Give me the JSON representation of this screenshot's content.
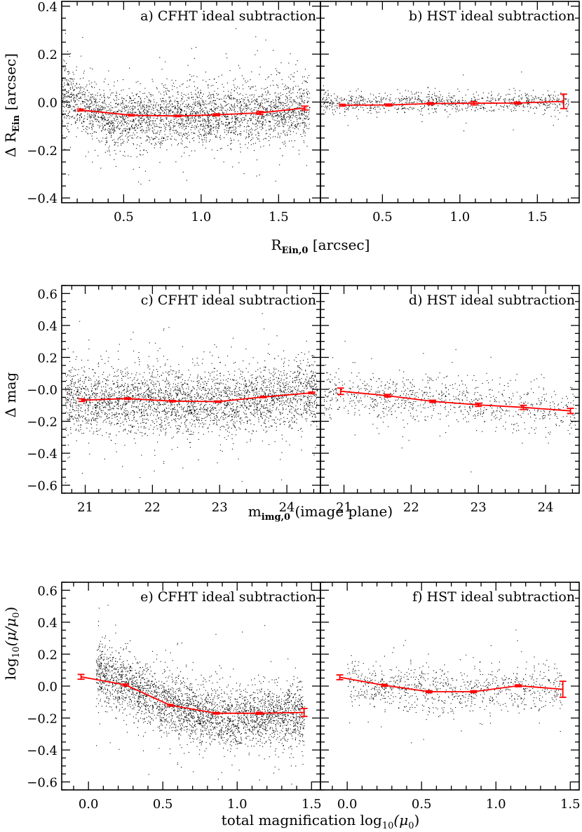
{
  "figure": {
    "rows": [
      {
        "xlabel": "R",
        "xlabel_sub": "Ein,0",
        "xlabel_tail": "[arcsec]",
        "ylabel": "Δ R",
        "ylabel_sub": "Ein",
        "ylabel_tail": "[arcsec]"
      },
      {
        "xlabel": "m",
        "xlabel_sub": "img,0",
        "xlabel_tail": "(image plane)",
        "ylabel": "Δ mag",
        "ylabel_sub": "",
        "ylabel_tail": ""
      },
      {
        "xlabel": "total magnification log",
        "xlabel_sub": "10",
        "xlabel_tail": "(μ",
        "xlabel_sub2": "0",
        "xlabel_tail2": ")",
        "ylabel": "log",
        "ylabel_sub": "10",
        "ylabel_tail": "(μ/μ",
        "ylabel_sub2": "0",
        "ylabel_tail2": ")"
      }
    ]
  },
  "chart_data": [
    {
      "type": "scatter",
      "panel": "a",
      "title": "a) CFHT ideal subtraction",
      "xlim": [
        0.1,
        1.77
      ],
      "ylim": [
        -0.42,
        0.42
      ],
      "xticks": [
        0.5,
        1.0,
        1.5
      ],
      "xticklabels": [
        "0.5",
        "1.0",
        "1.5"
      ],
      "yticks": [
        -0.4,
        -0.2,
        0.0,
        0.2,
        0.4
      ],
      "yticklabels": [
        "−0.4",
        "−0.2",
        "0.0",
        "0.2",
        "0.4"
      ],
      "scatter": {
        "density": "high",
        "x_range": [
          0.1,
          1.7
        ],
        "trend": [
          [
            0.1,
            0.03
          ],
          [
            0.4,
            -0.07
          ],
          [
            0.8,
            -0.06
          ],
          [
            1.2,
            -0.05
          ],
          [
            1.7,
            -0.03
          ]
        ],
        "spread": 0.06
      },
      "mean_line": {
        "color": "#ff0000",
        "x": [
          0.22,
          0.55,
          0.85,
          1.1,
          1.38,
          1.67
        ],
        "y": [
          -0.033,
          -0.055,
          -0.058,
          -0.053,
          -0.045,
          -0.025
        ],
        "err": [
          0.004,
          0.003,
          0.003,
          0.004,
          0.006,
          0.008
        ]
      }
    },
    {
      "type": "scatter",
      "panel": "b",
      "title": "b) HST  ideal subtraction",
      "xlim": [
        0.1,
        1.77
      ],
      "ylim": [
        -0.42,
        0.42
      ],
      "xticks": [
        0.5,
        1.0,
        1.5
      ],
      "xticklabels": [
        "0.5",
        "1.0",
        "1.5"
      ],
      "yticks": [
        -0.4,
        -0.2,
        0.0,
        0.2,
        0.4
      ],
      "yticklabels": [
        "−0.4",
        "−0.2",
        "0.0",
        "0.2",
        "0.4"
      ],
      "scatter": {
        "density": "low",
        "x_range": [
          0.1,
          1.7
        ],
        "trend": [
          [
            0.1,
            0.0
          ],
          [
            1.7,
            0.0
          ]
        ],
        "spread": 0.02
      },
      "mean_line": {
        "color": "#ff0000",
        "x": [
          0.24,
          0.54,
          0.81,
          1.09,
          1.37,
          1.67
        ],
        "y": [
          -0.013,
          -0.012,
          -0.006,
          -0.005,
          -0.004,
          0.003
        ],
        "err": [
          0.004,
          0.004,
          0.004,
          0.007,
          0.004,
          0.03
        ]
      }
    },
    {
      "type": "scatter",
      "panel": "c",
      "title": "c) CFHT ideal subtraction",
      "xlim": [
        20.65,
        24.5
      ],
      "ylim": [
        -0.65,
        0.65
      ],
      "xticks": [
        21,
        22,
        23,
        24
      ],
      "xticklabels": [
        "21",
        "22",
        "23",
        "24"
      ],
      "yticks": [
        -0.6,
        -0.4,
        -0.2,
        0.0,
        0.2,
        0.4,
        0.6
      ],
      "yticklabels": [
        "−0.6",
        "−0.4",
        "−0.2",
        "−0.0",
        "0.2",
        "0.4",
        "0.6"
      ],
      "scatter": {
        "density": "high",
        "x_range": [
          20.7,
          24.45
        ],
        "trend": [
          [
            20.7,
            -0.06
          ],
          [
            23,
            -0.08
          ],
          [
            24.45,
            -0.02
          ]
        ],
        "spread": 0.1
      },
      "mean_line": {
        "color": "#ff0000",
        "x": [
          20.95,
          21.63,
          22.3,
          22.98,
          23.65,
          24.37
        ],
        "y": [
          -0.068,
          -0.058,
          -0.074,
          -0.077,
          -0.048,
          -0.022
        ],
        "err": [
          0.008,
          0.005,
          0.004,
          0.004,
          0.004,
          0.005
        ]
      }
    },
    {
      "type": "scatter",
      "panel": "d",
      "title": "d) HST  ideal subtraction",
      "xlim": [
        20.65,
        24.5
      ],
      "ylim": [
        -0.65,
        0.65
      ],
      "xticks": [
        21,
        22,
        23,
        24
      ],
      "xticklabels": [
        "21",
        "22",
        "23",
        "24"
      ],
      "yticks": [
        -0.6,
        -0.4,
        -0.2,
        0.0,
        0.2,
        0.4,
        0.6
      ],
      "yticklabels": [
        "−0.6",
        "−0.4",
        "−0.2",
        "−0.0",
        "0.2",
        "0.4",
        "0.6"
      ],
      "scatter": {
        "density": "low",
        "x_range": [
          20.7,
          24.45
        ],
        "trend": [
          [
            20.7,
            -0.02
          ],
          [
            24.45,
            -0.13
          ]
        ],
        "spread": 0.07
      },
      "mean_line": {
        "color": "#ff0000",
        "x": [
          20.95,
          21.65,
          22.32,
          23.0,
          23.67,
          24.37
        ],
        "y": [
          -0.012,
          -0.04,
          -0.075,
          -0.097,
          -0.113,
          -0.135
        ],
        "err": [
          0.02,
          0.008,
          0.007,
          0.01,
          0.013,
          0.016
        ]
      }
    },
    {
      "type": "scatter",
      "panel": "e",
      "title": "e) CFHT ideal subtraction",
      "xlim": [
        -0.18,
        1.56
      ],
      "ylim": [
        -0.65,
        0.65
      ],
      "xticks": [
        0.0,
        0.5,
        1.0,
        1.5
      ],
      "xticklabels": [
        "0.0",
        "0.5",
        "1.0",
        "1.5"
      ],
      "yticks": [
        -0.6,
        -0.4,
        -0.2,
        0.0,
        0.2,
        0.4,
        0.6
      ],
      "yticklabels": [
        "−0.6",
        "−0.4",
        "−0.2",
        "0.0",
        "0.2",
        "0.4",
        "0.6"
      ],
      "scatter": {
        "density": "high",
        "x_range": [
          0.05,
          1.45
        ],
        "trend": [
          [
            0.05,
            0.1
          ],
          [
            0.3,
            0.0
          ],
          [
            0.6,
            -0.14
          ],
          [
            0.9,
            -0.2
          ],
          [
            1.45,
            -0.18
          ]
        ],
        "spread": 0.09
      },
      "mean_line": {
        "color": "#ff0000",
        "x": [
          -0.05,
          0.25,
          0.55,
          0.86,
          1.15,
          1.45
        ],
        "y": [
          0.058,
          0.007,
          -0.12,
          -0.17,
          -0.17,
          -0.165
        ],
        "err": [
          0.015,
          0.006,
          0.005,
          0.005,
          0.006,
          0.025
        ]
      }
    },
    {
      "type": "scatter",
      "panel": "f",
      "title": "f) HST  ideal subtraction",
      "xlim": [
        -0.18,
        1.56
      ],
      "ylim": [
        -0.65,
        0.65
      ],
      "xticks": [
        0.0,
        0.5,
        1.0,
        1.5
      ],
      "xticklabels": [
        "0.0",
        "0.5",
        "1.0",
        "1.5"
      ],
      "yticks": [
        -0.6,
        -0.4,
        -0.2,
        0.0,
        0.2,
        0.4,
        0.6
      ],
      "yticklabels": [
        "−0.6",
        "−0.4",
        "−0.2",
        "0.0",
        "0.2",
        "0.4",
        "0.6"
      ],
      "scatter": {
        "density": "low",
        "x_range": [
          0.0,
          1.45
        ],
        "trend": [
          [
            0.0,
            0.03
          ],
          [
            0.55,
            -0.03
          ],
          [
            1.45,
            -0.01
          ]
        ],
        "spread": 0.07
      },
      "mean_line": {
        "color": "#ff0000",
        "x": [
          -0.05,
          0.25,
          0.55,
          0.85,
          1.15,
          1.45
        ],
        "y": [
          0.055,
          0.005,
          -0.035,
          -0.035,
          0.002,
          -0.02
        ],
        "err": [
          0.015,
          0.006,
          0.006,
          0.006,
          0.006,
          0.05
        ]
      }
    }
  ]
}
